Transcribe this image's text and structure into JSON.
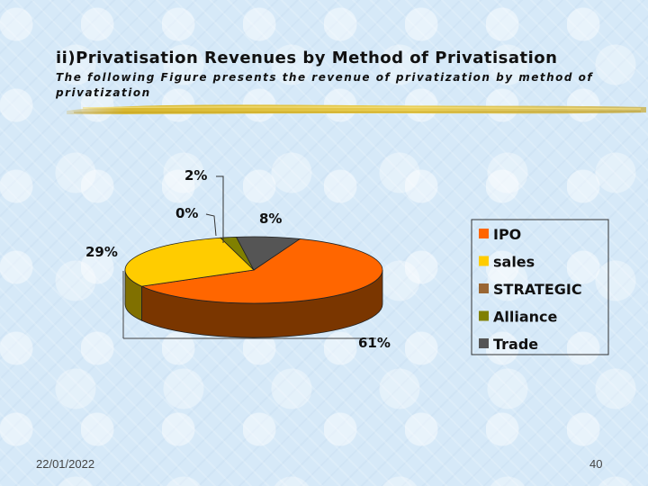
{
  "slide": {
    "title": "ii)Privatisation Revenues by Method of Privatisation",
    "subtitle": "The following Figure presents the revenue of privatization by method of privatization",
    "date": "22/01/2022",
    "page_number": "40"
  },
  "chart_data": {
    "type": "pie",
    "style": "3d",
    "legend_position": "right",
    "series": [
      {
        "name": "IPO",
        "value": 61,
        "label": "61%",
        "color": "#ff6600",
        "side": "#7a3600"
      },
      {
        "name": "sales",
        "value": 29,
        "label": "29%",
        "color": "#ffcc00",
        "side": "#807000"
      },
      {
        "name": "STRATEGIC",
        "value": 0,
        "label": "0%",
        "color": "#996633",
        "side": "#5a3a1a"
      },
      {
        "name": "Alliance",
        "value": 2,
        "label": "2%",
        "color": "#808000",
        "side": "#4d4d00"
      },
      {
        "name": "Trade",
        "value": 8,
        "label": "8%",
        "color": "#555555",
        "side": "#333333"
      }
    ]
  }
}
